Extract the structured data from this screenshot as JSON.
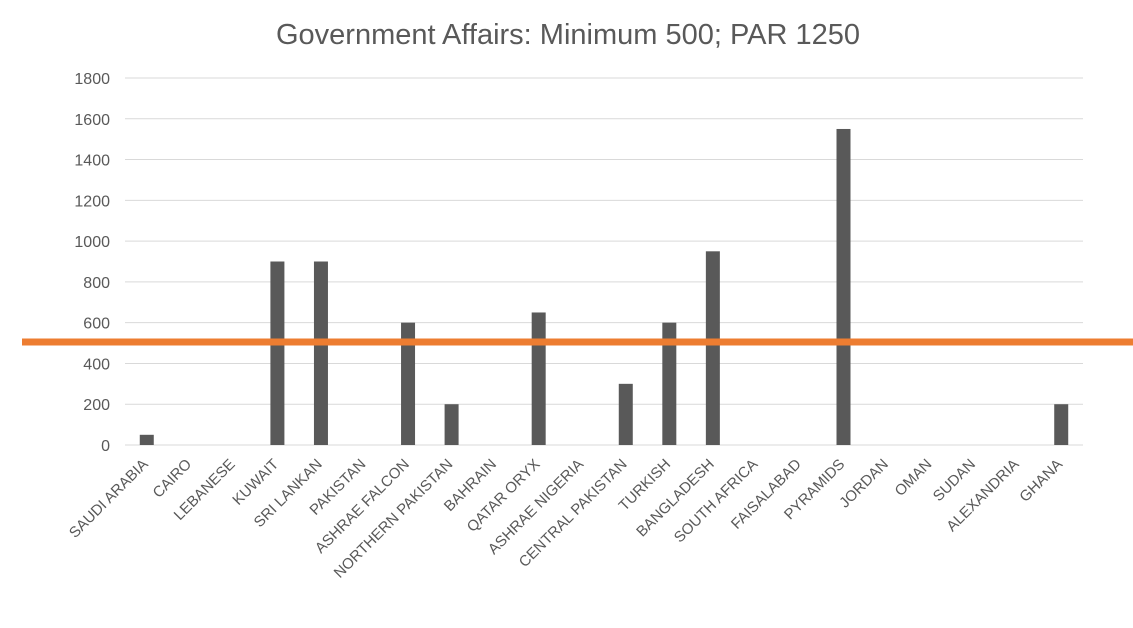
{
  "chart_data": {
    "type": "bar",
    "title": "Government Affairs: Minimum 500; PAR 1250",
    "xlabel": "",
    "ylabel": "",
    "ylim": [
      0,
      1800
    ],
    "ytick_step": 200,
    "grid": true,
    "legend": "none",
    "categories": [
      "SAUDI ARABIA",
      "CAIRO",
      "LEBANESE",
      "KUWAIT",
      "SRI LANKAN",
      "PAKISTAN",
      "ASHRAE FALCON",
      "NORTHERN PAKISTAN",
      "BAHRAIN",
      "QATAR ORYX",
      "ASHRAE NIGERIA",
      "CENTRAL PAKISTAN",
      "TURKISH",
      "BANGLADESH",
      "SOUTH AFRICA",
      "FAISALABAD",
      "PYRAMIDS",
      "JORDAN",
      "OMAN",
      "SUDAN",
      "ALEXANDRIA",
      "GHANA"
    ],
    "values": [
      50,
      0,
      0,
      900,
      900,
      0,
      600,
      200,
      0,
      650,
      0,
      300,
      600,
      950,
      0,
      0,
      1550,
      0,
      0,
      0,
      0,
      200
    ],
    "reference_line": {
      "value": 500
    },
    "colors": {
      "bar": "#595959",
      "reference_line": "#ED7D31",
      "grid": "#D9D9D9",
      "text": "#595959"
    }
  }
}
